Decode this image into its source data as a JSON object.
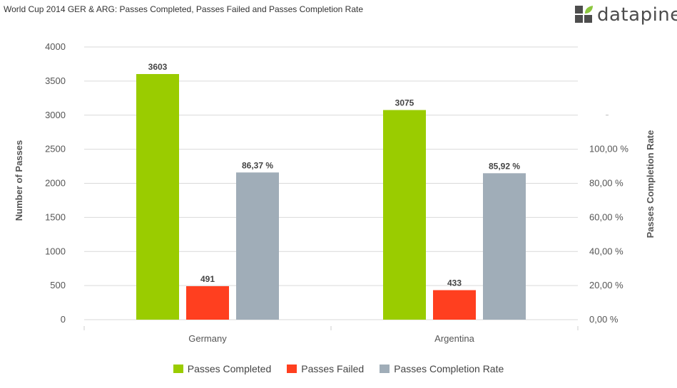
{
  "title": "World Cup 2014 GER & ARG: Passes Completed, Passes Failed and Passes Completion Rate",
  "logo": {
    "text": "datapine",
    "icon": "datapine-logo-icon",
    "colors": [
      "#4d4d4d",
      "#8cc63f"
    ]
  },
  "chart_data": {
    "type": "bar",
    "categories": [
      "Germany",
      "Argentina"
    ],
    "series": [
      {
        "name": "Passes Completed",
        "values": [
          3603,
          3075
        ],
        "labels": [
          "3603",
          "3075"
        ],
        "color": "#9acc00",
        "axis": "left"
      },
      {
        "name": "Passes Failed",
        "values": [
          491,
          433
        ],
        "labels": [
          "491",
          "433"
        ],
        "color": "#ff3f1f",
        "axis": "left"
      },
      {
        "name": "Passes Completion Rate",
        "values": [
          86.37,
          85.92
        ],
        "labels": [
          "86,37 %",
          "85,92 %"
        ],
        "color": "#a0adb8",
        "axis": "right"
      }
    ],
    "ylabel": "Number of Passes",
    "y2label": "Passes Completion Rate",
    "ylim": [
      0,
      4000
    ],
    "y2lim": [
      0,
      100
    ],
    "yticks": [
      "0",
      "500",
      "1000",
      "1500",
      "2000",
      "2500",
      "3000",
      "3500",
      "4000"
    ],
    "y2ticks": [
      "0,00 %",
      "20,00 %",
      "40,00 %",
      "60,00 %",
      "80,00 %",
      "100,00 %"
    ],
    "grid": true,
    "legend": "bottom-center"
  }
}
